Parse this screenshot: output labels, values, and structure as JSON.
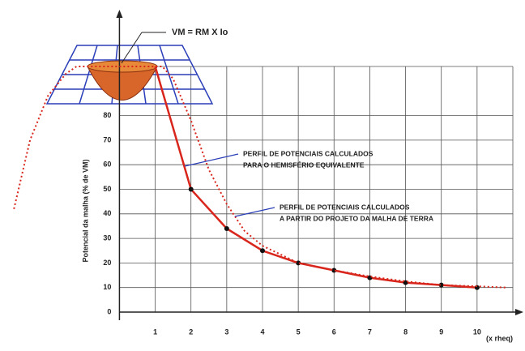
{
  "chart_data": {
    "type": "line",
    "equation": "VM = RM X Io",
    "y_label": "Potencial da malha (% de VM)",
    "x_label": "(x rheq)",
    "xlim": [
      -3,
      11
    ],
    "ylim": [
      0,
      100
    ],
    "xticks": [
      1,
      2,
      3,
      4,
      5,
      6,
      7,
      8,
      9,
      10
    ],
    "yticks": [
      0,
      10,
      20,
      30,
      40,
      50,
      60,
      70,
      80
    ],
    "grid": true,
    "series": [
      {
        "label": [
          "PERFIL DE POTENCIAIS CALCULADOS",
          "PARA O HEMISFÉRIO EQUIVALENTE"
        ],
        "color": "#d9261c",
        "dashed": false,
        "markers": true,
        "x": [
          1,
          2,
          3,
          4,
          5,
          6,
          7,
          8,
          9,
          10
        ],
        "values": [
          100,
          50,
          34,
          25,
          20,
          17,
          14,
          12,
          11,
          10
        ]
      },
      {
        "label": [
          "PERFIL DE POTENCIAIS CALCULADOS",
          "A PARTIR DO PROJETO DA MALHA DE TERRA"
        ],
        "color": "#d9261c",
        "dashed": true,
        "markers": false,
        "x": [
          -2.95,
          -2.5,
          -2,
          -1.5,
          -1.2,
          1.2,
          1.5,
          2,
          2.5,
          3,
          3.5,
          4,
          5,
          6,
          7,
          8,
          9,
          10,
          10.8
        ],
        "values": [
          42,
          70,
          88,
          97,
          100,
          100,
          95,
          78,
          58,
          44,
          33,
          27,
          20,
          17,
          14.5,
          12.5,
          11,
          10.5,
          10
        ]
      }
    ]
  }
}
